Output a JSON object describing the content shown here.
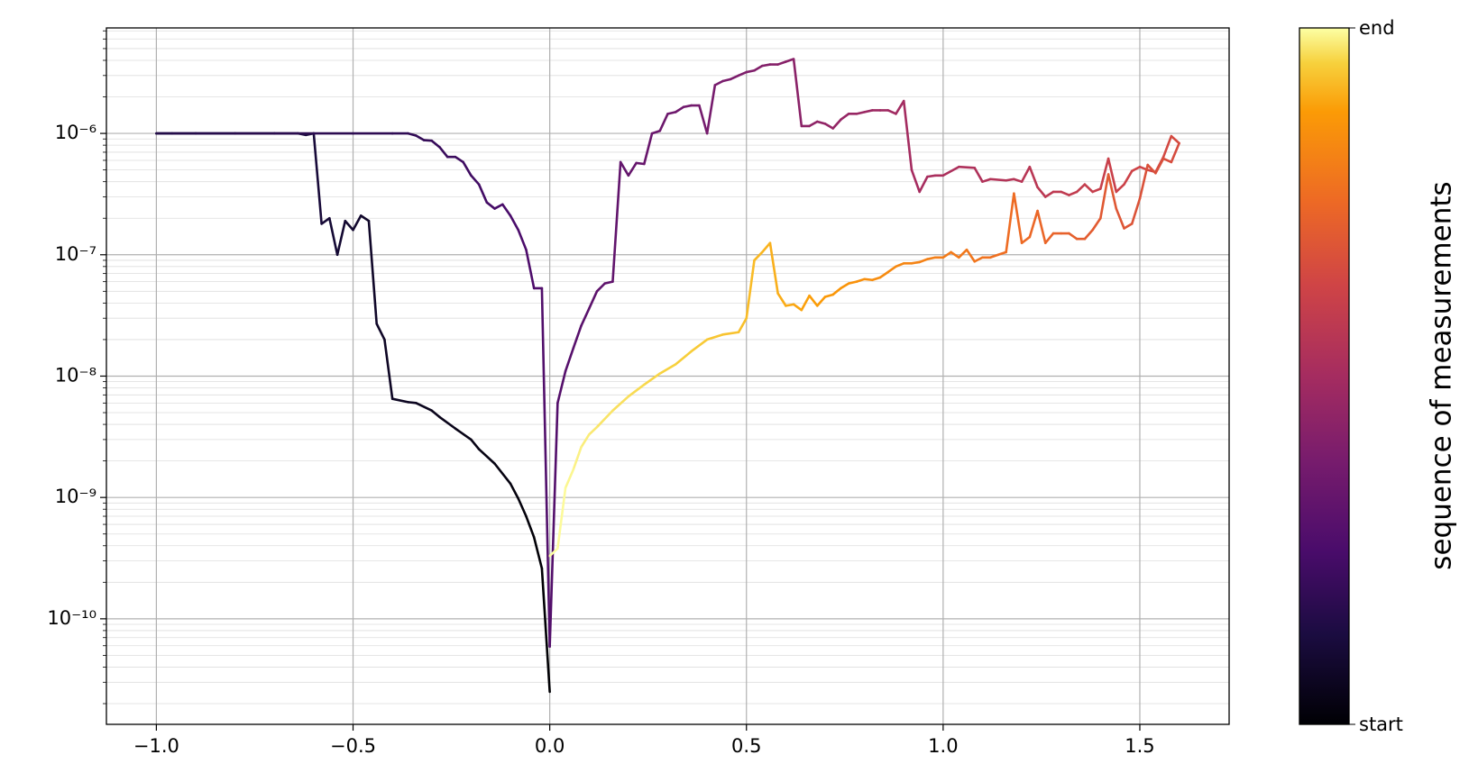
{
  "chart_data": {
    "type": "line",
    "log_y": true,
    "grid": true,
    "minor_grid": true,
    "colormap": "inferno",
    "x": [
      0.0,
      -0.02,
      -0.04,
      -0.06,
      -0.08,
      -0.1,
      -0.14,
      -0.18,
      -0.2,
      -0.24,
      -0.28,
      -0.3,
      -0.34,
      -0.36,
      -0.4,
      -0.42,
      -0.44,
      -0.46,
      -0.48,
      -0.5,
      -0.52,
      -0.54,
      -0.56,
      -0.58,
      -0.6,
      -0.62,
      -0.64,
      -0.7,
      -0.8,
      -0.9,
      -1.0,
      -0.96,
      -0.9,
      -0.8,
      -0.7,
      -0.6,
      -0.5,
      -0.4,
      -0.36,
      -0.34,
      -0.32,
      -0.3,
      -0.28,
      -0.26,
      -0.24,
      -0.22,
      -0.2,
      -0.18,
      -0.16,
      -0.14,
      -0.12,
      -0.1,
      -0.08,
      -0.06,
      -0.04,
      -0.02,
      0.0,
      0.02,
      0.04,
      0.06,
      0.08,
      0.1,
      0.12,
      0.14,
      0.16,
      0.18,
      0.2,
      0.22,
      0.24,
      0.26,
      0.28,
      0.3,
      0.32,
      0.34,
      0.36,
      0.38,
      0.4,
      0.42,
      0.44,
      0.46,
      0.48,
      0.5,
      0.52,
      0.54,
      0.56,
      0.58,
      0.6,
      0.62,
      0.64,
      0.66,
      0.68,
      0.7,
      0.72,
      0.74,
      0.76,
      0.78,
      0.8,
      0.82,
      0.84,
      0.86,
      0.88,
      0.9,
      0.92,
      0.94,
      0.96,
      0.98,
      1.0,
      1.04,
      1.08,
      1.1,
      1.12,
      1.16,
      1.18,
      1.2,
      1.22,
      1.24,
      1.26,
      1.28,
      1.3,
      1.32,
      1.34,
      1.36,
      1.38,
      1.4,
      1.42,
      1.44,
      1.46,
      1.48,
      1.5,
      1.52,
      1.54,
      1.56,
      1.58,
      1.6,
      1.58,
      1.56,
      1.54,
      1.52,
      1.5,
      1.48,
      1.46,
      1.44,
      1.42,
      1.4,
      1.38,
      1.36,
      1.34,
      1.32,
      1.3,
      1.28,
      1.26,
      1.24,
      1.22,
      1.2,
      1.18,
      1.16,
      1.14,
      1.12,
      1.1,
      1.08,
      1.06,
      1.04,
      1.02,
      1.0,
      0.98,
      0.96,
      0.94,
      0.92,
      0.9,
      0.88,
      0.86,
      0.84,
      0.82,
      0.8,
      0.78,
      0.76,
      0.74,
      0.72,
      0.7,
      0.68,
      0.66,
      0.64,
      0.62,
      0.6,
      0.58,
      0.56,
      0.54,
      0.52,
      0.5,
      0.48,
      0.44,
      0.4,
      0.36,
      0.32,
      0.28,
      0.24,
      0.2,
      0.16,
      0.12,
      0.1,
      0.08,
      0.06,
      0.04,
      0.02,
      0.0
    ],
    "values": [
      2.5e-11,
      2.6e-10,
      4.7e-10,
      7e-10,
      9.8e-10,
      1.3e-09,
      1.9e-09,
      2.5e-09,
      3e-09,
      3.7e-09,
      4.6e-09,
      5.2e-09,
      6e-09,
      6.1e-09,
      6.5e-09,
      2e-08,
      2.7e-08,
      1.9e-07,
      2.1e-07,
      1.6e-07,
      1.9e-07,
      1e-07,
      2e-07,
      1.8e-07,
      1e-06,
      9.7e-07,
      1e-06,
      1e-06,
      1e-06,
      1e-06,
      1e-06,
      1e-06,
      1e-06,
      1e-06,
      1e-06,
      1e-06,
      1e-06,
      1e-06,
      1e-06,
      9.6e-07,
      8.8e-07,
      8.7e-07,
      7.7e-07,
      6.4e-07,
      6.4e-07,
      5.8e-07,
      4.5e-07,
      3.8e-07,
      2.7e-07,
      2.4e-07,
      2.6e-07,
      2.1e-07,
      1.6e-07,
      1.1e-07,
      5.3e-08,
      5.3e-08,
      5.9e-11,
      6e-09,
      1.1e-08,
      1.7e-08,
      2.6e-08,
      3.6e-08,
      5e-08,
      5.8e-08,
      6e-08,
      5.8e-07,
      4.5e-07,
      5.7e-07,
      5.6e-07,
      1e-06,
      1.05e-06,
      1.45e-06,
      1.5e-06,
      1.65e-06,
      1.7e-06,
      1.7e-06,
      1e-06,
      2.5e-06,
      2.7e-06,
      2.8e-06,
      3e-06,
      3.2e-06,
      3.3e-06,
      3.6e-06,
      3.7e-06,
      3.7e-06,
      3.9e-06,
      4.1e-06,
      1.15e-06,
      1.15e-06,
      1.25e-06,
      1.2e-06,
      1.1e-06,
      1.3e-06,
      1.45e-06,
      1.45e-06,
      1.5e-06,
      1.55e-06,
      1.55e-06,
      1.55e-06,
      1.45e-06,
      1.85e-06,
      5e-07,
      3.3e-07,
      4.4e-07,
      4.5e-07,
      4.5e-07,
      5.3e-07,
      5.2e-07,
      4e-07,
      4.2e-07,
      4.1e-07,
      4.2e-07,
      4e-07,
      5.3e-07,
      3.6e-07,
      3e-07,
      3.3e-07,
      3.3e-07,
      3.1e-07,
      3.3e-07,
      3.8e-07,
      3.3e-07,
      3.5e-07,
      6.2e-07,
      3.3e-07,
      3.8e-07,
      4.9e-07,
      5.3e-07,
      5e-07,
      4.8e-07,
      6.4e-07,
      9.5e-07,
      8.3e-07,
      5.8e-07,
      6.2e-07,
      4.7e-07,
      5.5e-07,
      2.9e-07,
      1.8e-07,
      1.65e-07,
      2.4e-07,
      4.6e-07,
      2e-07,
      1.6e-07,
      1.35e-07,
      1.35e-07,
      1.5e-07,
      1.5e-07,
      1.5e-07,
      1.25e-07,
      2.3e-07,
      1.4e-07,
      1.25e-07,
      3.2e-07,
      1.05e-07,
      1e-07,
      9.5e-08,
      9.5e-08,
      8.8e-08,
      1.1e-07,
      9.5e-08,
      1.05e-07,
      9.5e-08,
      9.5e-08,
      9.2e-08,
      8.7e-08,
      8.5e-08,
      8.5e-08,
      8e-08,
      7.2e-08,
      6.5e-08,
      6.2e-08,
      6.3e-08,
      6e-08,
      5.8e-08,
      5.3e-08,
      4.7e-08,
      4.5e-08,
      3.8e-08,
      4.6e-08,
      3.5e-08,
      3.9e-08,
      3.8e-08,
      4.8e-08,
      1.25e-07,
      1.05e-07,
      9e-08,
      3e-08,
      2.3e-08,
      2.2e-08,
      2e-08,
      1.6e-08,
      1.25e-08,
      1.05e-08,
      8.5e-09,
      6.8e-09,
      5.2e-09,
      3.8e-09,
      3.3e-09,
      2.6e-09,
      1.7e-09,
      1.2e-09,
      3.8e-10,
      3.3e-10
    ],
    "xlim": [
      -1.127,
      1.727
    ],
    "xticks": [
      {
        "value": -1,
        "label": "−1.0"
      },
      {
        "value": -0.5,
        "label": "−0.5"
      },
      {
        "value": 0,
        "label": "0.0"
      },
      0.5,
      {
        "value": 1,
        "label": "1.0"
      },
      1.5
    ],
    "ylim": [
      1.35e-11,
      7.4e-06
    ],
    "yticks": [
      {
        "value": 1e-10,
        "label": "10⁻¹⁰"
      },
      {
        "value": 1e-09,
        "label": "10⁻⁹"
      },
      {
        "value": 1e-08,
        "label": "10⁻⁸"
      },
      {
        "value": 1e-07,
        "label": "10⁻⁷"
      },
      {
        "value": 1e-06,
        "label": "10⁻⁶"
      }
    ],
    "colorbar": {
      "label": "sequence of measurements",
      "ticks": [
        "start",
        "end"
      ]
    }
  }
}
